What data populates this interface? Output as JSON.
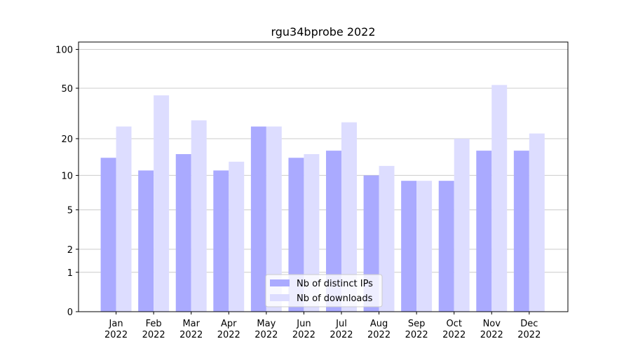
{
  "chart_data": {
    "type": "bar",
    "title": "rgu34bprobe 2022",
    "categories": [
      "Jan 2022",
      "Feb 2022",
      "Mar 2022",
      "Apr 2022",
      "May 2022",
      "Jun 2022",
      "Jul 2022",
      "Aug 2022",
      "Sep 2022",
      "Oct 2022",
      "Nov 2022",
      "Dec 2022"
    ],
    "series": [
      {
        "name": "Nb of distinct IPs",
        "color": "#aaaaff",
        "values": [
          14,
          11,
          15,
          11,
          25,
          14,
          16,
          10,
          9,
          9,
          16,
          16
        ]
      },
      {
        "name": "Nb of downloads",
        "color": "#ddddff",
        "values": [
          25,
          44,
          28,
          13,
          25,
          15,
          27,
          12,
          9,
          20,
          53,
          22
        ]
      }
    ],
    "yscale": "log1p",
    "ylim": [
      0,
      114
    ],
    "yticks": [
      0,
      1,
      2,
      5,
      10,
      20,
      50,
      100
    ],
    "grid": true,
    "legend": "lower center"
  }
}
